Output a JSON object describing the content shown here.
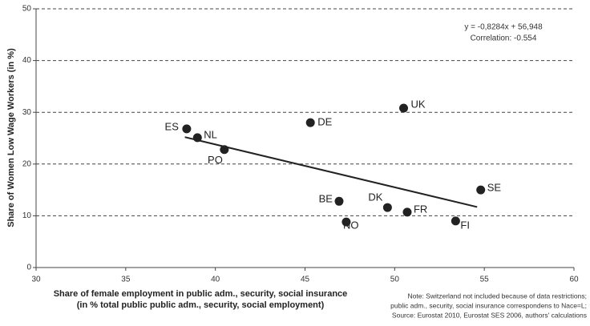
{
  "chart_data": {
    "type": "scatter",
    "x_label": "Share of female employment in public adm., security, social insurance",
    "x_label_2": "(in % total public public adm., security, social employment)",
    "y_label": "Share of Women Low Wage Workers (in %)",
    "annotations": [
      "y = -0,8284x + 56,948",
      "Correlation: -0.554"
    ],
    "notes": [
      "Note: Switzerland not included because of data restrictions;",
      "public adm., security, social insurance correspondens to Nace=L;",
      "Source: Eurostat 2010, Eurostat SES 2006, authors' calculations"
    ],
    "series": [
      {
        "names": [
          "ES",
          "NL",
          "PO",
          "DE",
          "UK",
          "BE",
          "NO",
          "DK",
          "FR",
          "SE",
          "FI"
        ],
        "color": "#222222",
        "x": [
          38.4,
          39.0,
          40.5,
          45.3,
          50.5,
          46.9,
          47.3,
          49.6,
          50.7,
          54.8,
          53.4
        ],
        "values": [
          26.8,
          25.1,
          22.8,
          28.0,
          30.8,
          12.8,
          8.8,
          11.6,
          10.7,
          15.0,
          9.0
        ]
      }
    ],
    "trendline": {
      "x": [
        38.3,
        54.6
      ],
      "values": [
        25.2,
        11.7
      ],
      "color": "#222222"
    },
    "xlim": [
      30,
      60
    ],
    "xticks": [
      30,
      35,
      40,
      45,
      50,
      55,
      60
    ],
    "ylim": [
      0,
      50
    ],
    "yticks": [
      0,
      10,
      20,
      30,
      40,
      50
    ],
    "grid": true
  }
}
